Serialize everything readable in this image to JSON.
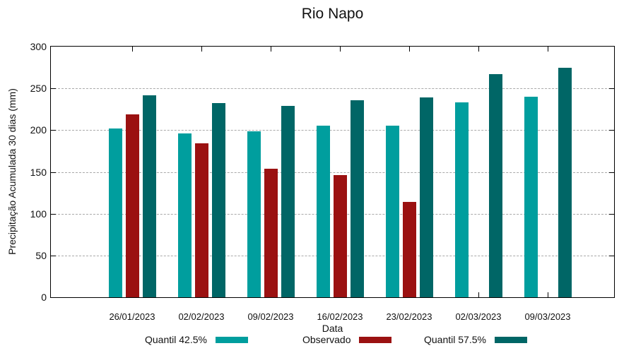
{
  "chart_data": {
    "type": "bar",
    "title": "Rio Napo",
    "xlabel": "Data",
    "ylabel": "Precipitação Acumulada 30 dias (mm)",
    "ylim": [
      0,
      300
    ],
    "yticks": [
      0,
      50,
      100,
      150,
      200,
      250,
      300
    ],
    "grid": "horizontal-dashed",
    "grid_color": "#a9a9a9",
    "legend_position": "bottom",
    "categories": [
      "26/01/2023",
      "02/02/2023",
      "09/02/2023",
      "16/02/2023",
      "23/02/2023",
      "02/03/2023",
      "09/03/2023"
    ],
    "series": [
      {
        "name": "Quantil 42.5%",
        "color": "#009E9E",
        "values": [
          202,
          196,
          199,
          205,
          205,
          233,
          240
        ]
      },
      {
        "name": "Observado",
        "color": "#9B1111",
        "values": [
          219,
          184,
          154,
          146,
          114,
          null,
          null
        ]
      },
      {
        "name": "Quantil 57.5%",
        "color": "#006666",
        "values": [
          242,
          232,
          229,
          236,
          239,
          267,
          275
        ]
      }
    ]
  }
}
